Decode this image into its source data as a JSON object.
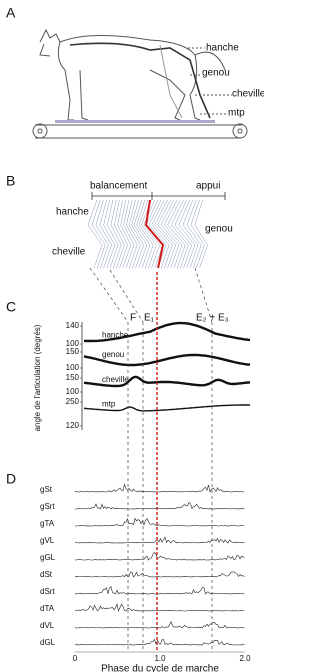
{
  "panels": {
    "A": {
      "label": "A",
      "joints": [
        "hanche",
        "genou",
        "cheville",
        "mtp"
      ]
    },
    "B": {
      "label": "B",
      "phases": [
        "balancement",
        "appui"
      ],
      "joints": [
        "hanche",
        "genou",
        "cheville"
      ]
    },
    "C": {
      "label": "C",
      "y_axis_label": "angle de l'articulation (degrés)",
      "phases": [
        "F",
        "E₁",
        "E₂ + E₃"
      ],
      "rows": [
        "hanche",
        "genou",
        "cheville",
        "mtp"
      ],
      "tick_labels": [
        "140",
        "100",
        "150",
        "100",
        "150",
        "100",
        "250",
        "120"
      ]
    },
    "D": {
      "label": "D",
      "muscles": [
        "gSt",
        "gSrt",
        "gTA",
        "gVL",
        "gGL",
        "dSt",
        "dSrt",
        "dTA",
        "dVL",
        "dGL"
      ],
      "x_tick_labels": [
        "0",
        "1.0",
        "2.0"
      ],
      "x_axis_label": "Phase du cycle de marche"
    }
  }
}
